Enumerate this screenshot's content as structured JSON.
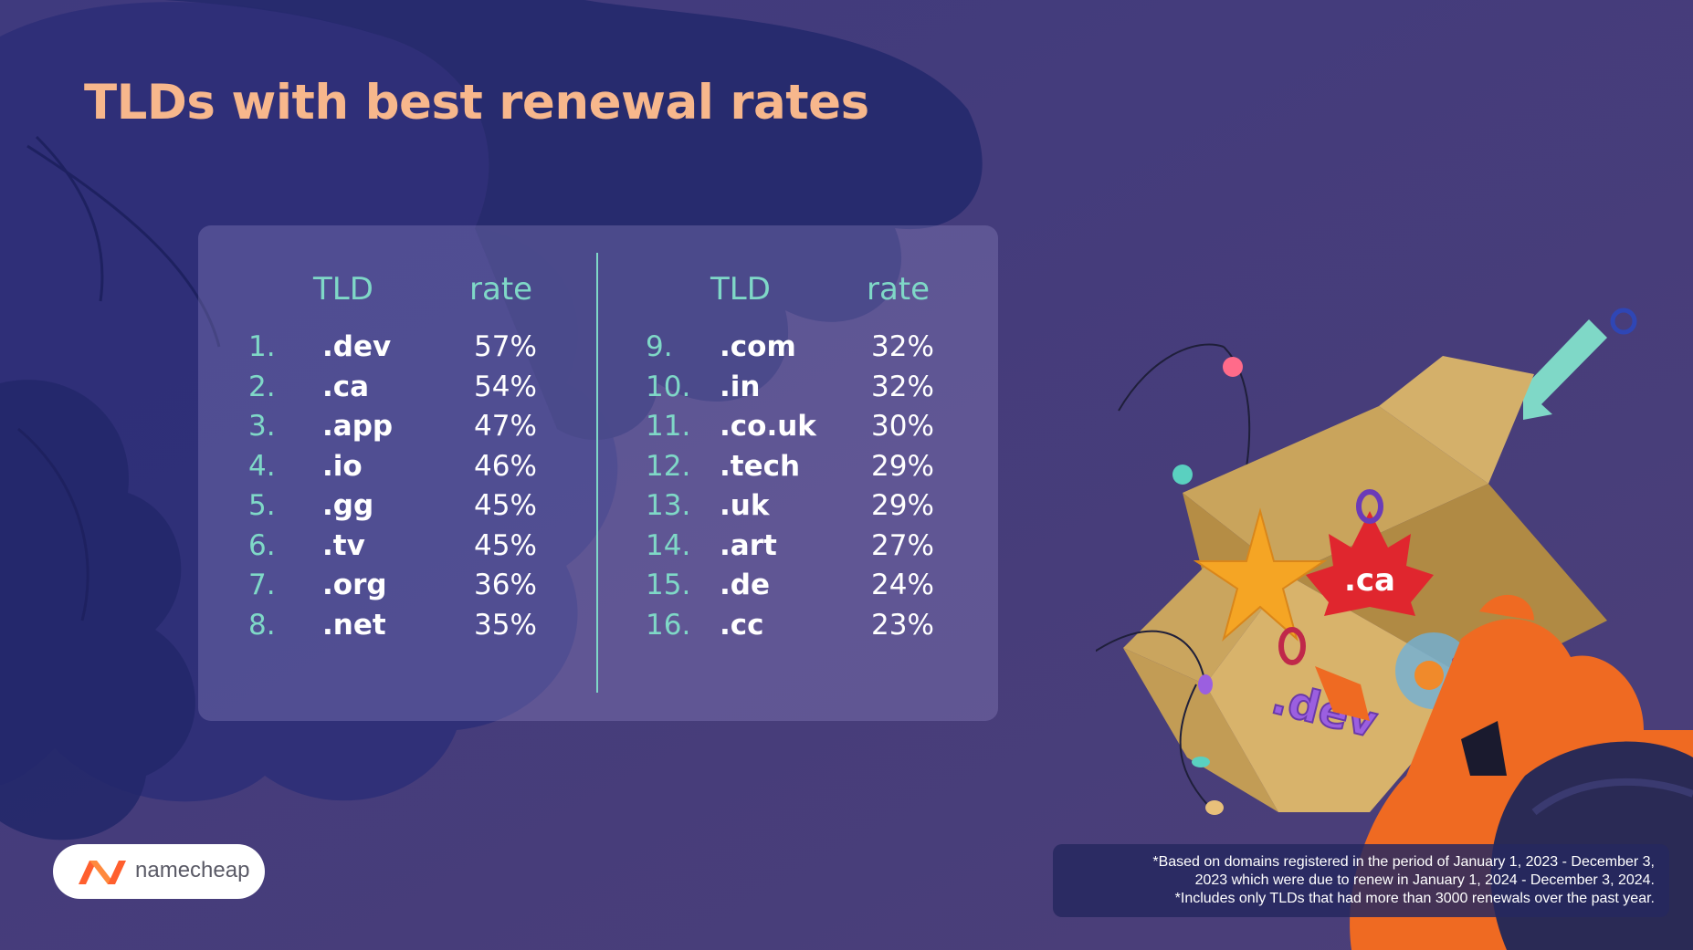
{
  "title": "TLDs with best renewal rates",
  "chart_data": {
    "type": "table",
    "title": "TLDs with best renewal rates",
    "columns": [
      "TLD",
      "rate"
    ],
    "rows": [
      {
        "rank": "1.",
        "tld": ".dev",
        "rate": "57%",
        "value": 57
      },
      {
        "rank": "2.",
        "tld": ".ca",
        "rate": "54%",
        "value": 54
      },
      {
        "rank": "3.",
        "tld": ".app",
        "rate": "47%",
        "value": 47
      },
      {
        "rank": "4.",
        "tld": ".io",
        "rate": "46%",
        "value": 46
      },
      {
        "rank": "5.",
        "tld": ".gg",
        "rate": "45%",
        "value": 45
      },
      {
        "rank": "6.",
        "tld": ".tv",
        "rate": "45%",
        "value": 45
      },
      {
        "rank": "7.",
        "tld": ".org",
        "rate": "36%",
        "value": 36
      },
      {
        "rank": "8.",
        "tld": ".net",
        "rate": "35%",
        "value": 35
      },
      {
        "rank": "9.",
        "tld": ".com",
        "rate": "32%",
        "value": 32
      },
      {
        "rank": "10.",
        "tld": ".in",
        "rate": "32%",
        "value": 32
      },
      {
        "rank": "11.",
        "tld": ".co.uk",
        "rate": "30%",
        "value": 30
      },
      {
        "rank": "12.",
        "tld": ".tech",
        "rate": "29%",
        "value": 29
      },
      {
        "rank": "13.",
        "tld": ".uk",
        "rate": "29%",
        "value": 29
      },
      {
        "rank": "14.",
        "tld": ".art",
        "rate": "27%",
        "value": 27
      },
      {
        "rank": "15.",
        "tld": ".de",
        "rate": "24%",
        "value": 24
      },
      {
        "rank": "16.",
        "tld": ".cc",
        "rate": "23%",
        "value": 23
      }
    ]
  },
  "illustration": {
    "ornament_ca": ".ca",
    "ornament_dev": ".dev"
  },
  "logo": {
    "text": "namecheap"
  },
  "footnotes": [
    "*Based on domains registered in the period of January 1, 2023 - December 3,",
    "2023 which were due to renew in January 1, 2024 - December 3,  2024.",
    "*Includes only TLDs that had more than 3000 renewals over the past year."
  ],
  "colors": {
    "background": "#4a3f7c",
    "title": "#f7b78c",
    "accent": "#7fd8c7",
    "text": "#ffffff",
    "brand": "#ff5f2e"
  }
}
